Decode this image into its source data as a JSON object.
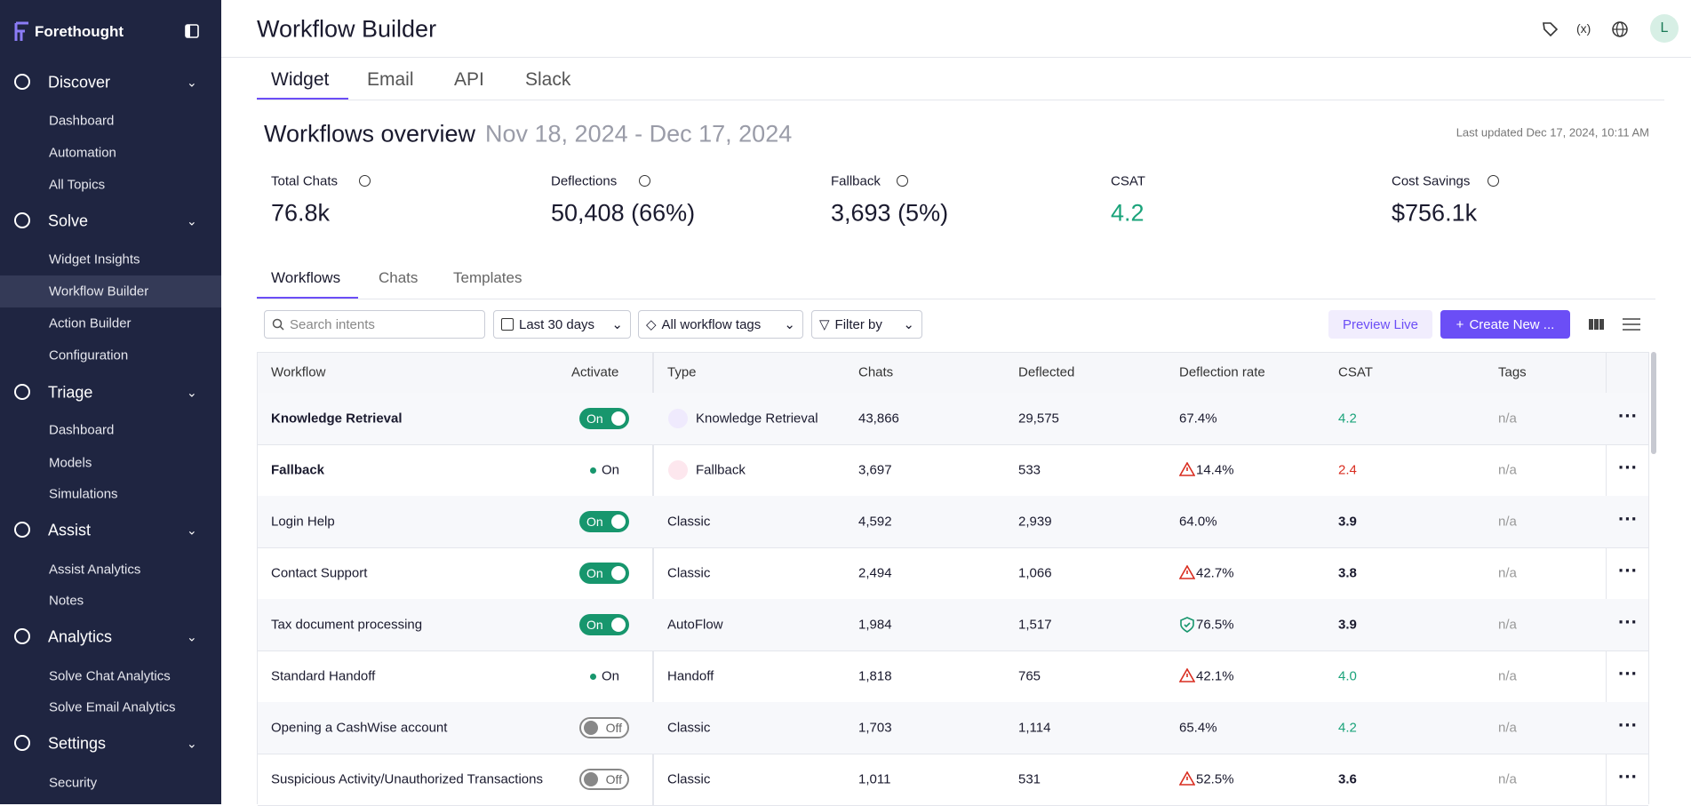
{
  "sidebar": {
    "brand": "Forethought",
    "sections": [
      {
        "title": "Discover",
        "items": [
          "Dashboard",
          "Automation",
          "All Topics"
        ]
      },
      {
        "title": "Solve",
        "items": [
          "Widget Insights",
          "Workflow Builder",
          "Action Builder",
          "Configuration"
        ]
      },
      {
        "title": "Triage",
        "items": [
          "Dashboard",
          "Models",
          "Simulations"
        ]
      },
      {
        "title": "Assist",
        "items": [
          "Assist Analytics",
          "Notes"
        ]
      },
      {
        "title": "Analytics",
        "items": [
          "Solve Chat Analytics",
          "Solve Email Analytics"
        ]
      },
      {
        "title": "Settings",
        "items": [
          "Security"
        ]
      }
    ]
  },
  "header": {
    "title": "Workflow Builder",
    "avatar": "L"
  },
  "channel_tabs": [
    "Widget",
    "Email",
    "API",
    "Slack"
  ],
  "overview": {
    "title": "Workflows overview",
    "date_range": "Nov 18, 2024 - Dec 17, 2024",
    "last_updated": "Last updated Dec 17, 2024, 10:11 AM",
    "metrics": [
      {
        "label": "Total Chats",
        "value": "76.8k"
      },
      {
        "label": "Deflections",
        "value": "50,408 (66%)"
      },
      {
        "label": "Fallback",
        "value": "3,693 (5%)"
      },
      {
        "label": "CSAT",
        "value": "4.2",
        "color": "#1aa37a"
      },
      {
        "label": "Cost Savings",
        "value": "$756.1k"
      }
    ]
  },
  "sub_tabs": [
    "Workflows",
    "Chats",
    "Templates"
  ],
  "toolbar": {
    "search_placeholder": "Search intents",
    "date_filter": "Last 30 days",
    "tags_filter": "All workflow tags",
    "filter": "Filter by",
    "preview": "Preview Live",
    "create": "Create New ..."
  },
  "table": {
    "columns": [
      "Workflow",
      "Activate",
      "Type",
      "Chats",
      "Deflected",
      "Deflection rate",
      "CSAT",
      "Tags"
    ],
    "rows": [
      {
        "workflow": "Knowledge Retrieval",
        "bold": true,
        "activate": "On",
        "toggle": true,
        "type": "Knowledge Retrieval",
        "chats": "43,866",
        "deflected": "29,575",
        "deflection_rate": "67.4%",
        "csat": "4.2",
        "csat_color": "#1aa37a",
        "tags": "n/a"
      },
      {
        "workflow": "Fallback",
        "bold": true,
        "activate": "On",
        "toggle": false,
        "type": "Fallback",
        "chats": "3,697",
        "deflected": "533",
        "deflection_rate": "14.4%",
        "rate_flag": "warning",
        "csat": "2.4",
        "csat_color": "#d92d20",
        "tags": "n/a"
      },
      {
        "workflow": "Login Help",
        "activate": "On",
        "toggle": true,
        "type": "Classic",
        "chats": "4,592",
        "deflected": "2,939",
        "deflection_rate": "64.0%",
        "csat": "3.9",
        "tags": "n/a"
      },
      {
        "workflow": "Contact Support",
        "activate": "On",
        "toggle": true,
        "type": "Classic",
        "chats": "2,494",
        "deflected": "1,066",
        "deflection_rate": "42.7%",
        "rate_flag": "warning",
        "csat": "3.8",
        "tags": "n/a"
      },
      {
        "workflow": "Tax document processing",
        "activate": "On",
        "toggle": true,
        "type": "AutoFlow",
        "chats": "1,984",
        "deflected": "1,517",
        "deflection_rate": "76.5%",
        "rate_flag": "ok",
        "csat": "3.9",
        "tags": "n/a"
      },
      {
        "workflow": "Standard Handoff",
        "activate": "On",
        "toggle": false,
        "type": "Handoff",
        "chats": "1,818",
        "deflected": "765",
        "deflection_rate": "42.1%",
        "rate_flag": "warning",
        "csat": "4.0",
        "csat_color": "#1aa37a",
        "tags": "n/a"
      },
      {
        "workflow": "Opening a CashWise account",
        "activate": "Off",
        "toggle": true,
        "type": "Classic",
        "chats": "1,703",
        "deflected": "1,114",
        "deflection_rate": "65.4%",
        "csat": "4.2",
        "csat_color": "#1aa37a",
        "tags": "n/a"
      },
      {
        "workflow": "Suspicious Activity/Unauthorized Transactions",
        "activate": "Off",
        "toggle": true,
        "type": "Classic",
        "chats": "1,011",
        "deflected": "531",
        "deflection_rate": "52.5%",
        "rate_flag": "warning",
        "csat": "3.6",
        "tags": "n/a"
      }
    ]
  }
}
